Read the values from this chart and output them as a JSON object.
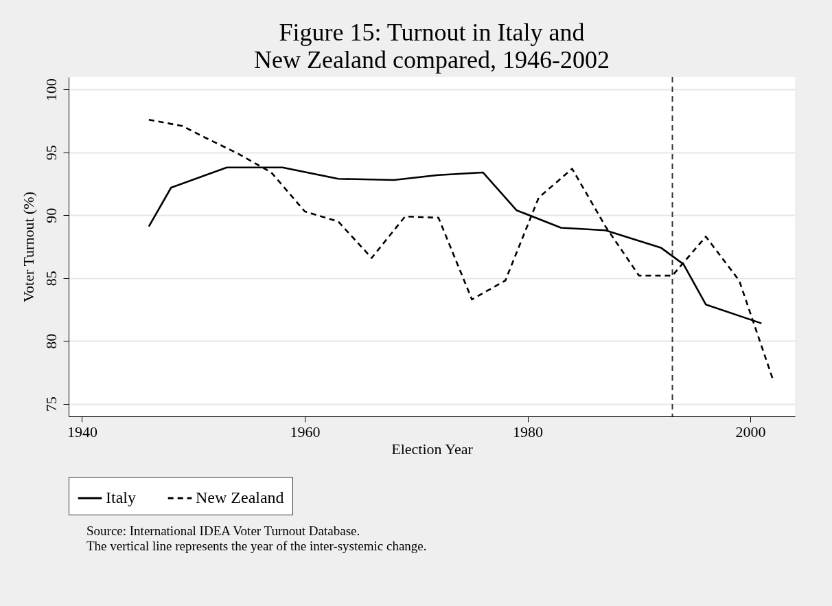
{
  "chart_data": {
    "type": "line",
    "title": "Figure 15: Turnout in Italy and\nNew Zealand compared, 1946-2002",
    "xlabel": "Election Year",
    "ylabel": "Voter Turnout (%)",
    "series": [
      {
        "name": "Italy",
        "color": "#000000",
        "line_style": "solid",
        "x": [
          1946,
          1948,
          1953,
          1958,
          1963,
          1968,
          1972,
          1976,
          1979,
          1983,
          1987,
          1992,
          1994,
          1996,
          2001
        ],
        "values": [
          89.1,
          92.2,
          93.8,
          93.8,
          92.9,
          92.8,
          93.2,
          93.4,
          90.4,
          89.0,
          88.8,
          87.4,
          86.1,
          82.9,
          81.4
        ]
      },
      {
        "name": "New Zealand",
        "color": "#000000",
        "line_style": "dashed",
        "x": [
          1946,
          1949,
          1951,
          1954,
          1957,
          1960,
          1963,
          1966,
          1969,
          1972,
          1975,
          1978,
          1981,
          1984,
          1987,
          1990,
          1993,
          1996,
          1999,
          2002
        ],
        "values": [
          97.6,
          97.1,
          96.2,
          94.9,
          93.4,
          90.3,
          89.5,
          86.6,
          89.9,
          89.8,
          83.3,
          84.8,
          91.4,
          93.7,
          89.1,
          85.2,
          85.2,
          88.3,
          84.8,
          77.0
        ]
      }
    ],
    "xlim": [
      1938.8,
      2004
    ],
    "xticks": [
      1940,
      1960,
      1980,
      2000
    ],
    "ylim": [
      74,
      101
    ],
    "yticks": [
      75,
      80,
      85,
      90,
      95,
      100
    ],
    "grid": "y",
    "legend": "bottom",
    "ref_lines": [
      {
        "axis": "x",
        "value": 1993,
        "color": "#333333",
        "line_style": "dashed"
      }
    ],
    "annotations": [
      "Source: International IDEA Voter Turnout Database.",
      "The vertical line represents the year of the inter-systemic change."
    ]
  }
}
